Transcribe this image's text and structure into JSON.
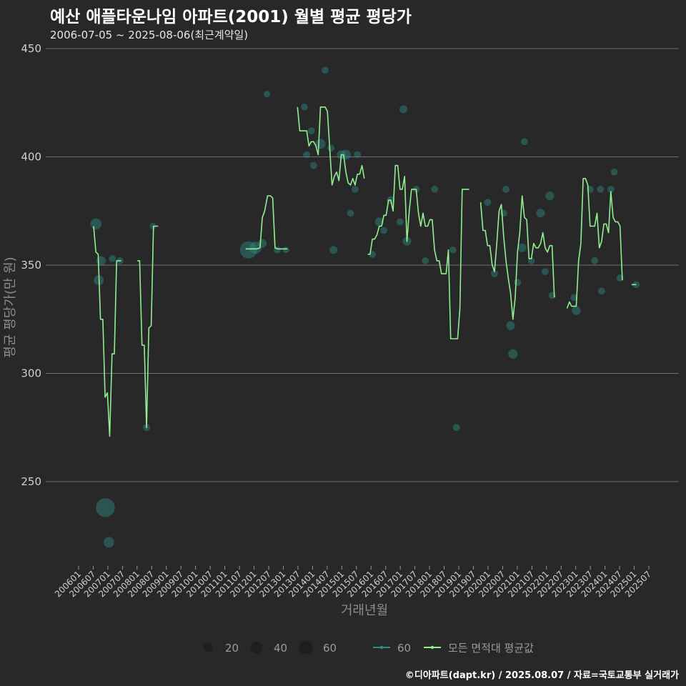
{
  "header": {
    "title": "예산 애플타운나임 아파트(2001) 월별 평균 평당가",
    "subtitle": "2006-07-05 ~ 2025-08-06(최근계약일)"
  },
  "footer": {
    "caption": "©디아파트(dapt.kr) / 2025.08.07 / 자료=국토교통부 실거래가"
  },
  "colors": {
    "background": "#282828",
    "grid": "#707070",
    "line": "#90ee90",
    "point": "#2f8c84"
  },
  "legend": {
    "size_items": [
      {
        "label": "20",
        "size": 20
      },
      {
        "label": "40",
        "size": 40
      },
      {
        "label": "60",
        "size": 60
      }
    ],
    "line_items": [
      {
        "label": "60",
        "color": "#2f8c84"
      },
      {
        "label": "모든 면적대 평균값",
        "color": "#90ee90"
      }
    ]
  },
  "chart_data": {
    "type": "line",
    "title": "예산 애플타운나임 아파트(2001) 월별 평균 평당가",
    "xlabel": "거래년월",
    "ylabel": "평균 평당가(만 원)",
    "ylim": [
      210,
      450
    ],
    "xlim": [
      2006.0,
      2025.8
    ],
    "yticks": [
      250,
      300,
      350,
      400,
      450
    ],
    "xticks": [
      "200601",
      "200607",
      "200701",
      "200707",
      "200801",
      "200807",
      "200901",
      "200907",
      "201001",
      "201007",
      "201101",
      "201107",
      "201201",
      "201207",
      "201301",
      "201307",
      "201401",
      "201407",
      "201501",
      "201507",
      "201601",
      "201607",
      "201701",
      "201707",
      "201801",
      "201807",
      "201901",
      "201907",
      "202001",
      "202007",
      "202101",
      "202107",
      "202201",
      "202207",
      "202301",
      "202307",
      "202401",
      "202407",
      "202501",
      "202507"
    ],
    "series": [
      {
        "name": "모든 면적대 평균값",
        "segments": [
          [
            [
              2006.52,
              368
            ],
            [
              2006.6,
              356
            ],
            [
              2006.68,
              355
            ],
            [
              2006.76,
              325
            ],
            [
              2006.84,
              325
            ],
            [
              2006.92,
              289
            ],
            [
              2007.0,
              291
            ],
            [
              2007.08,
              271
            ],
            [
              2007.16,
              309
            ],
            [
              2007.24,
              309
            ],
            [
              2007.32,
              352
            ],
            [
              2007.4,
              352
            ],
            [
              2007.48,
              352
            ]
          ],
          [
            [
              2008.04,
              352
            ],
            [
              2008.12,
              352
            ],
            [
              2008.2,
              313
            ],
            [
              2008.28,
              313
            ],
            [
              2008.36,
              275
            ],
            [
              2008.44,
              321
            ],
            [
              2008.52,
              322
            ],
            [
              2008.6,
              368
            ],
            [
              2008.68,
              368
            ],
            [
              2008.76,
              368
            ]
          ],
          [
            [
              2011.8,
              357.5
            ],
            [
              2012.0,
              357.5
            ],
            [
              2012.2,
              357.5
            ],
            [
              2012.3,
              358
            ],
            [
              2012.38,
              372
            ],
            [
              2012.46,
              375
            ],
            [
              2012.56,
              382
            ],
            [
              2012.66,
              382
            ],
            [
              2012.74,
              381
            ],
            [
              2012.82,
              358
            ],
            [
              2012.9,
              357.5
            ],
            [
              2013.05,
              357.5
            ],
            [
              2013.25,
              357.5
            ]
          ],
          [
            [
              2013.6,
              423
            ],
            [
              2013.68,
              412
            ],
            [
              2013.76,
              412
            ],
            [
              2013.84,
              412
            ],
            [
              2013.92,
              412
            ],
            [
              2014.0,
              405
            ],
            [
              2014.08,
              407
            ],
            [
              2014.16,
              407
            ],
            [
              2014.24,
              405
            ],
            [
              2014.32,
              401
            ],
            [
              2014.4,
              423
            ],
            [
              2014.48,
              423
            ],
            [
              2014.56,
              423
            ],
            [
              2014.64,
              421
            ],
            [
              2014.72,
              404
            ],
            [
              2014.8,
              387
            ],
            [
              2014.88,
              391
            ],
            [
              2014.96,
              393
            ],
            [
              2015.04,
              389
            ],
            [
              2015.12,
              401
            ],
            [
              2015.2,
              401
            ],
            [
              2015.28,
              393
            ],
            [
              2015.36,
              388
            ],
            [
              2015.44,
              387
            ],
            [
              2015.52,
              390
            ],
            [
              2015.6,
              387
            ],
            [
              2015.68,
              392
            ],
            [
              2015.76,
              392
            ],
            [
              2015.84,
              396
            ],
            [
              2015.92,
              390
            ]
          ],
          [
            [
              2016.04,
              355
            ],
            [
              2016.12,
              355
            ],
            [
              2016.2,
              362
            ],
            [
              2016.28,
              362
            ],
            [
              2016.36,
              364
            ],
            [
              2016.44,
              368
            ],
            [
              2016.52,
              368
            ],
            [
              2016.6,
              373
            ],
            [
              2016.68,
              373
            ],
            [
              2016.76,
              380
            ],
            [
              2016.84,
              380
            ],
            [
              2016.92,
              375
            ],
            [
              2017.0,
              396
            ],
            [
              2017.08,
              396
            ],
            [
              2017.16,
              385
            ],
            [
              2017.24,
              385
            ],
            [
              2017.32,
              391
            ],
            [
              2017.4,
              361
            ],
            [
              2017.48,
              375
            ],
            [
              2017.56,
              385
            ],
            [
              2017.64,
              385
            ],
            [
              2017.72,
              385
            ],
            [
              2017.8,
              374
            ],
            [
              2017.88,
              368
            ],
            [
              2017.96,
              374
            ],
            [
              2018.04,
              368
            ],
            [
              2018.12,
              368
            ],
            [
              2018.2,
              371
            ],
            [
              2018.28,
              371
            ],
            [
              2018.36,
              357
            ],
            [
              2018.44,
              352
            ],
            [
              2018.52,
              352
            ],
            [
              2018.6,
              346
            ],
            [
              2018.68,
              346
            ],
            [
              2018.76,
              346
            ],
            [
              2018.84,
              357
            ],
            [
              2018.92,
              316
            ],
            [
              2019.0,
              316
            ],
            [
              2019.08,
              316
            ],
            [
              2019.16,
              316
            ],
            [
              2019.24,
              330
            ],
            [
              2019.32,
              385
            ],
            [
              2019.4,
              385
            ],
            [
              2019.48,
              385
            ],
            [
              2019.56,
              385
            ]
          ],
          [
            [
              2019.96,
              379
            ],
            [
              2020.04,
              366
            ],
            [
              2020.12,
              366
            ],
            [
              2020.2,
              359
            ],
            [
              2020.28,
              359
            ],
            [
              2020.36,
              350
            ],
            [
              2020.44,
              347
            ],
            [
              2020.52,
              360
            ],
            [
              2020.6,
              375
            ],
            [
              2020.68,
              378
            ],
            [
              2020.76,
              363
            ],
            [
              2020.84,
              352
            ],
            [
              2020.92,
              344
            ],
            [
              2021.0,
              337
            ],
            [
              2021.08,
              325
            ],
            [
              2021.16,
              335
            ],
            [
              2021.24,
              356
            ],
            [
              2021.32,
              365
            ],
            [
              2021.4,
              382
            ],
            [
              2021.48,
              372
            ],
            [
              2021.56,
              371
            ],
            [
              2021.64,
              353
            ],
            [
              2021.72,
              353
            ],
            [
              2021.8,
              360
            ],
            [
              2021.88,
              358
            ],
            [
              2021.96,
              358
            ],
            [
              2022.04,
              360
            ],
            [
              2022.12,
              365
            ],
            [
              2022.2,
              358
            ],
            [
              2022.28,
              356
            ],
            [
              2022.36,
              359
            ],
            [
              2022.44,
              359
            ],
            [
              2022.52,
              335
            ]
          ],
          [
            [
              2022.96,
              330
            ],
            [
              2023.04,
              333
            ],
            [
              2023.12,
              331
            ],
            [
              2023.2,
              331
            ],
            [
              2023.28,
              331
            ],
            [
              2023.36,
              352
            ],
            [
              2023.44,
              360
            ],
            [
              2023.52,
              390
            ],
            [
              2023.6,
              390
            ],
            [
              2023.68,
              387
            ],
            [
              2023.76,
              368
            ],
            [
              2023.84,
              368
            ],
            [
              2023.92,
              368
            ],
            [
              2024.0,
              374
            ],
            [
              2024.08,
              358
            ],
            [
              2024.16,
              361
            ],
            [
              2024.24,
              369
            ],
            [
              2024.32,
              369
            ],
            [
              2024.4,
              365
            ],
            [
              2024.48,
              384
            ],
            [
              2024.56,
              372
            ],
            [
              2024.64,
              370
            ],
            [
              2024.72,
              370
            ],
            [
              2024.8,
              368
            ],
            [
              2024.88,
              343
            ]
          ],
          [
            [
              2025.2,
              341
            ],
            [
              2025.36,
              341
            ]
          ]
        ]
      },
      {
        "name": "60",
        "points": [
          [
            2006.6,
            369,
            16
          ],
          [
            2006.7,
            343,
            12
          ],
          [
            2006.78,
            352,
            10
          ],
          [
            2006.93,
            238,
            60
          ],
          [
            2007.05,
            222,
            14
          ],
          [
            2007.17,
            353,
            4
          ],
          [
            2007.44,
            352,
            4
          ],
          [
            2008.36,
            275,
            4
          ],
          [
            2008.58,
            368,
            3
          ],
          [
            2011.9,
            357,
            48
          ],
          [
            2012.14,
            358,
            20
          ],
          [
            2012.38,
            360,
            8
          ],
          [
            2012.54,
            429,
            3
          ],
          [
            2012.9,
            357,
            4
          ],
          [
            2013.2,
            357,
            3
          ],
          [
            2013.84,
            423,
            4
          ],
          [
            2013.92,
            401,
            4
          ],
          [
            2014.08,
            412,
            4
          ],
          [
            2014.16,
            396,
            4
          ],
          [
            2014.4,
            406,
            12
          ],
          [
            2014.56,
            440,
            4
          ],
          [
            2014.76,
            404,
            4
          ],
          [
            2014.85,
            357,
            6
          ],
          [
            2015.12,
            401,
            8
          ],
          [
            2015.28,
            401,
            12
          ],
          [
            2015.44,
            374,
            4
          ],
          [
            2015.6,
            385,
            4
          ],
          [
            2015.68,
            401,
            4
          ],
          [
            2016.2,
            355,
            4
          ],
          [
            2016.44,
            370,
            8
          ],
          [
            2016.6,
            366,
            4
          ],
          [
            2016.84,
            380,
            6
          ],
          [
            2017.16,
            370,
            4
          ],
          [
            2017.28,
            422,
            6
          ],
          [
            2017.4,
            361,
            8
          ],
          [
            2017.72,
            385,
            4
          ],
          [
            2018.04,
            352,
            4
          ],
          [
            2018.36,
            385,
            4
          ],
          [
            2019.0,
            357,
            4
          ],
          [
            2019.12,
            275,
            4
          ],
          [
            2020.2,
            379,
            4
          ],
          [
            2020.44,
            346,
            4
          ],
          [
            2020.84,
            385,
            4
          ],
          [
            2020.76,
            374,
            4
          ],
          [
            2021.0,
            322,
            8
          ],
          [
            2021.08,
            309,
            10
          ],
          [
            2021.24,
            342,
            4
          ],
          [
            2021.4,
            358,
            8
          ],
          [
            2021.48,
            407,
            4
          ],
          [
            2021.72,
            352,
            4
          ],
          [
            2022.04,
            374,
            8
          ],
          [
            2022.2,
            347,
            4
          ],
          [
            2022.36,
            382,
            8
          ],
          [
            2022.44,
            336,
            4
          ],
          [
            2023.2,
            335,
            4
          ],
          [
            2023.28,
            329,
            8
          ],
          [
            2023.76,
            385,
            4
          ],
          [
            2023.92,
            352,
            4
          ],
          [
            2024.12,
            385,
            4
          ],
          [
            2024.16,
            338,
            4
          ],
          [
            2024.48,
            385,
            4
          ],
          [
            2024.6,
            393,
            4
          ],
          [
            2024.8,
            344,
            4
          ],
          [
            2025.36,
            341,
            4
          ]
        ]
      }
    ]
  }
}
